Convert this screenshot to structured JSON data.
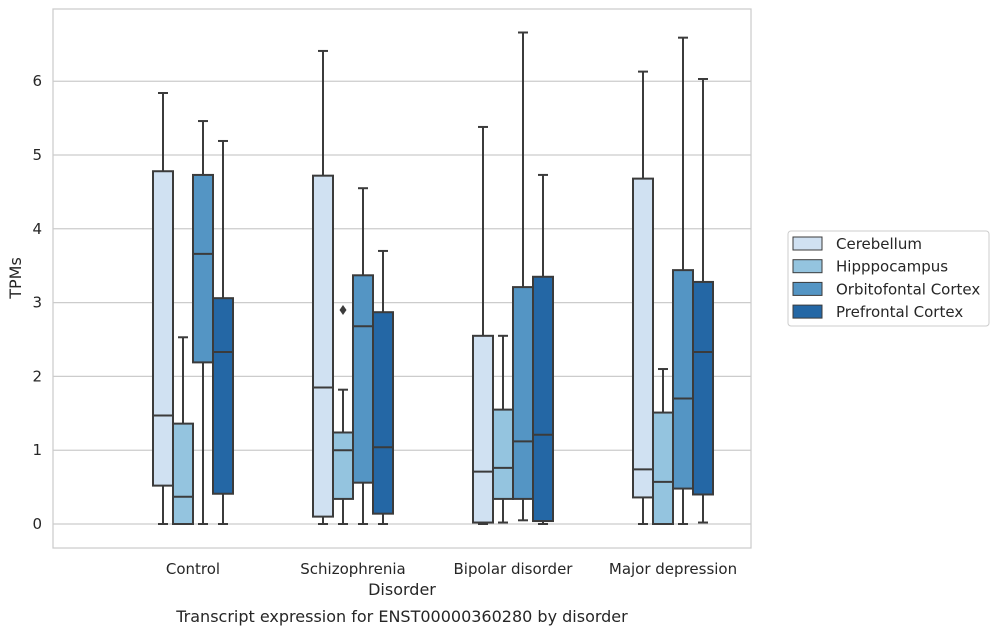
{
  "caption": "Transcript expression for ENST00000360280 by disorder",
  "chart_data": {
    "type": "box",
    "xlabel": "Disorder",
    "ylabel": "TPMs",
    "ylim": [
      -0.32,
      7.0
    ],
    "yticks": [
      0,
      1,
      2,
      3,
      4,
      5,
      6
    ],
    "grid": true,
    "legend_position": "right",
    "categories": [
      "Control",
      "Schizophrenia",
      "Bipolar disorder",
      "Major depression"
    ],
    "series": [
      {
        "name": "Cerebellum",
        "color": "#d0e1f2",
        "boxes": [
          {
            "whisker_low": 0,
            "q1": 0.52,
            "median": 1.47,
            "q3": 4.78,
            "whisker_high": 5.84
          },
          {
            "whisker_low": 0,
            "q1": 0.1,
            "median": 1.85,
            "q3": 4.72,
            "whisker_high": 6.41
          },
          {
            "whisker_low": 0,
            "q1": 0.02,
            "median": 0.71,
            "q3": 2.55,
            "whisker_high": 5.38
          },
          {
            "whisker_low": 0,
            "q1": 0.36,
            "median": 0.74,
            "q3": 4.68,
            "whisker_high": 6.13
          }
        ]
      },
      {
        "name": "Hipppocampus",
        "color": "#94c4df",
        "boxes": [
          {
            "whisker_low": 0,
            "q1": 0,
            "median": 0.37,
            "q3": 1.36,
            "whisker_high": 2.53
          },
          {
            "whisker_low": 0,
            "q1": 0.34,
            "median": 1.0,
            "q3": 1.24,
            "whisker_high": 1.82,
            "outliers": [
              2.9
            ]
          },
          {
            "whisker_low": 0.02,
            "q1": 0.34,
            "median": 0.76,
            "q3": 1.55,
            "whisker_high": 2.55
          },
          {
            "whisker_low": 0,
            "q1": 0,
            "median": 0.57,
            "q3": 1.51,
            "whisker_high": 2.1
          }
        ]
      },
      {
        "name": "Orbitofontal Cortex",
        "color": "#5495c4",
        "boxes": [
          {
            "whisker_low": 0,
            "q1": 2.19,
            "median": 3.66,
            "q3": 4.73,
            "whisker_high": 5.46
          },
          {
            "whisker_low": 0,
            "q1": 0.56,
            "median": 2.68,
            "q3": 3.37,
            "whisker_high": 4.55
          },
          {
            "whisker_low": 0.05,
            "q1": 0.34,
            "median": 1.12,
            "q3": 3.21,
            "whisker_high": 6.66
          },
          {
            "whisker_low": 0,
            "q1": 0.48,
            "median": 1.7,
            "q3": 3.44,
            "whisker_high": 6.59
          }
        ]
      },
      {
        "name": "Prefrontal Cortex",
        "color": "#2467a5",
        "boxes": [
          {
            "whisker_low": 0,
            "q1": 0.41,
            "median": 2.33,
            "q3": 3.06,
            "whisker_high": 5.19
          },
          {
            "whisker_low": 0,
            "q1": 0.14,
            "median": 1.04,
            "q3": 2.87,
            "whisker_high": 3.7
          },
          {
            "whisker_low": 0,
            "q1": 0.04,
            "median": 1.21,
            "q3": 3.35,
            "whisker_high": 4.73
          },
          {
            "whisker_low": 0.02,
            "q1": 0.4,
            "median": 2.33,
            "q3": 3.28,
            "whisker_high": 6.03
          }
        ]
      }
    ]
  }
}
